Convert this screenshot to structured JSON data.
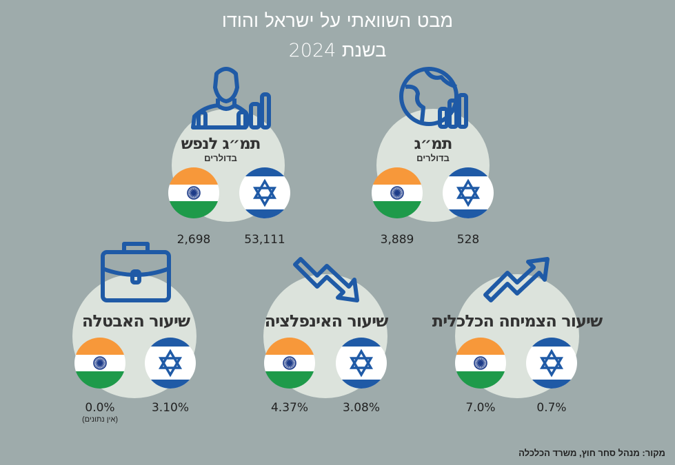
{
  "title": {
    "line1": "מבט השוואתי על ישראל והודו",
    "line2": "בשנת 2024"
  },
  "colors": {
    "background": "#9eabab",
    "circle": "#dce3dc",
    "icon_blue": "#1f5aa6",
    "india_saffron": "#f7983a",
    "india_green": "#1e9a4a",
    "israel_blue": "#1f5aa6"
  },
  "panels": {
    "gdp_per_capita": {
      "label": "תמ״ג לנפש",
      "sub": "בדולרים",
      "israel": "53,111",
      "india": "2,698",
      "icon": "person-chart-icon"
    },
    "gdp": {
      "label": "תמ״ג",
      "sub": "בדולרים",
      "israel": "528",
      "india": "3,889",
      "icon": "globe-chart-icon"
    },
    "unemployment": {
      "label": "שיעור האבטלה",
      "israel": "3.10%",
      "india": "0.0%",
      "india_note": "(אין נתונים)",
      "icon": "briefcase-icon"
    },
    "inflation": {
      "label": "שיעור האינפלציה",
      "israel": "3.08%",
      "india": "4.37%",
      "icon": "trend-down-arrow-icon"
    },
    "growth": {
      "label": "שיעור הצמיחה הכלכלית",
      "israel": "0.7%",
      "india": "7.0%",
      "icon": "trend-up-arrow-icon"
    }
  },
  "source": "מקור: מנהל סחר חוץ, משרד הכלכלה"
}
